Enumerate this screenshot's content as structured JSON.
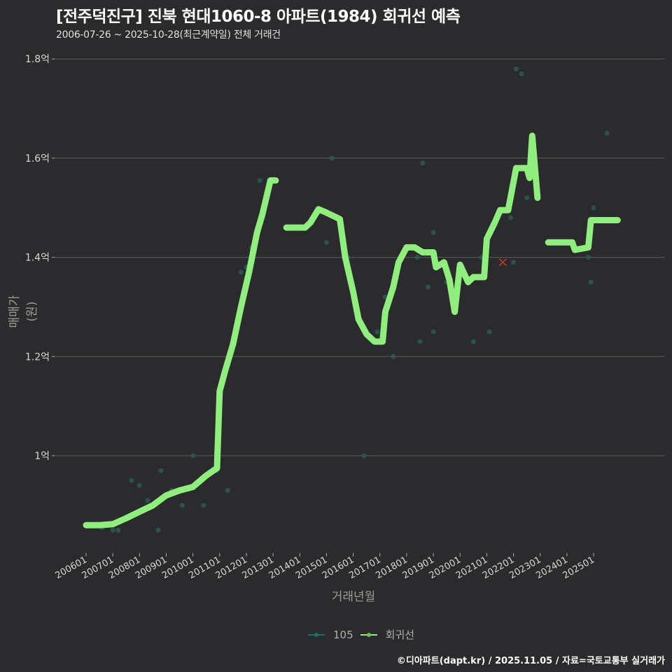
{
  "header": {
    "title": "[전주덕진구] 진북 현대1060-8 아파트(1984) 회귀선 예측",
    "subtitle": "2006-07-26 ~ 2025-10-28(최근계약일) 전체 거래건"
  },
  "axes": {
    "ylabel": "매매가(원)",
    "xlabel": "거래년월",
    "yticks": [
      "1억",
      "1.2억",
      "1.4억",
      "1.6억",
      "1.8억"
    ],
    "xticks": [
      "200601",
      "200701",
      "200801",
      "200901",
      "201001",
      "201101",
      "201201",
      "201301",
      "201401",
      "201501",
      "201601",
      "201701",
      "201801",
      "201901",
      "202001",
      "202101",
      "202201",
      "202301",
      "202401",
      "202501"
    ]
  },
  "legend": {
    "items": [
      {
        "label": "105",
        "color": "#1f6f66"
      },
      {
        "label": "회귀선",
        "color": "#90ee7e"
      }
    ]
  },
  "footer": {
    "credit": "©디아파트(dapt.kr) / 2025.11.05 / 자료=국토교통부 실거래가"
  },
  "colors": {
    "background": "#2b2a2c",
    "grid": "#5e5e5e",
    "regression": "#90ee7e",
    "points": "#2a5a52",
    "prediction_marker": "#c0392b"
  },
  "chart_data": {
    "type": "line",
    "title": "[전주덕진구] 진북 현대1060-8 아파트(1984) 회귀선 예측",
    "subtitle": "2006-07-26 ~ 2025-10-28(최근계약일) 전체 거래건",
    "xlabel": "거래년월",
    "ylabel": "매매가(원)",
    "ylim": [
      0.82,
      1.82
    ],
    "yunit": "억",
    "grid": true,
    "legend_position": "bottom",
    "series": [
      {
        "name": "회귀선",
        "type": "line",
        "segments": [
          [
            [
              2006.0,
              0.86
            ],
            [
              2006.5,
              0.86
            ],
            [
              2007.0,
              0.862
            ],
            [
              2007.5,
              0.874
            ],
            [
              2008.0,
              0.887
            ],
            [
              2008.5,
              0.9
            ],
            [
              2009.0,
              0.92
            ],
            [
              2009.5,
              0.93
            ],
            [
              2010.0,
              0.937
            ],
            [
              2010.5,
              0.96
            ],
            [
              2010.9,
              0.975
            ],
            [
              2011.0,
              1.13
            ],
            [
              2011.2,
              1.17
            ],
            [
              2011.5,
              1.225
            ],
            [
              2011.8,
              1.3
            ],
            [
              2012.1,
              1.37
            ],
            [
              2012.4,
              1.45
            ],
            [
              2012.6,
              1.487
            ],
            [
              2012.9,
              1.555
            ],
            [
              2013.1,
              1.555
            ]
          ],
          [
            [
              2013.5,
              1.46
            ],
            [
              2014.2,
              1.46
            ],
            [
              2014.4,
              1.47
            ],
            [
              2014.7,
              1.497
            ],
            [
              2015.0,
              1.49
            ],
            [
              2015.5,
              1.477
            ],
            [
              2015.7,
              1.4
            ],
            [
              2016.0,
              1.33
            ],
            [
              2016.2,
              1.275
            ],
            [
              2016.5,
              1.245
            ],
            [
              2016.8,
              1.23
            ],
            [
              2017.1,
              1.23
            ],
            [
              2017.2,
              1.29
            ],
            [
              2017.5,
              1.34
            ],
            [
              2017.7,
              1.39
            ],
            [
              2018.0,
              1.42
            ],
            [
              2018.3,
              1.42
            ],
            [
              2018.6,
              1.41
            ],
            [
              2019.0,
              1.41
            ],
            [
              2019.1,
              1.38
            ],
            [
              2019.4,
              1.39
            ],
            [
              2019.6,
              1.355
            ],
            [
              2019.8,
              1.29
            ],
            [
              2020.0,
              1.385
            ],
            [
              2020.3,
              1.35
            ],
            [
              2020.5,
              1.36
            ],
            [
              2020.9,
              1.36
            ],
            [
              2021.0,
              1.437
            ],
            [
              2021.3,
              1.47
            ],
            [
              2021.5,
              1.495
            ],
            [
              2021.8,
              1.495
            ],
            [
              2022.1,
              1.58
            ],
            [
              2022.5,
              1.58
            ],
            [
              2022.6,
              1.56
            ],
            [
              2022.7,
              1.645
            ],
            [
              2022.9,
              1.52
            ]
          ],
          [
            [
              2023.3,
              1.43
            ],
            [
              2024.2,
              1.43
            ],
            [
              2024.3,
              1.415
            ],
            [
              2024.8,
              1.42
            ],
            [
              2024.9,
              1.475
            ],
            [
              2025.0,
              1.475
            ],
            [
              2025.9,
              1.475
            ]
          ]
        ]
      },
      {
        "name": "105",
        "type": "scatter",
        "points": [
          [
            2006.6,
            0.855
          ],
          [
            2007.0,
            0.85
          ],
          [
            2007.2,
            0.85
          ],
          [
            2007.7,
            0.95
          ],
          [
            2008.0,
            0.94
          ],
          [
            2008.3,
            0.91
          ],
          [
            2008.7,
            0.85
          ],
          [
            2008.8,
            0.97
          ],
          [
            2009.2,
            0.93
          ],
          [
            2009.6,
            0.9
          ],
          [
            2010.0,
            1.0
          ],
          [
            2010.4,
            0.9
          ],
          [
            2010.9,
            0.97
          ],
          [
            2011.3,
            0.93
          ],
          [
            2011.8,
            1.37
          ],
          [
            2012.0,
            1.38
          ],
          [
            2012.2,
            1.42
          ],
          [
            2012.5,
            1.555
          ],
          [
            2014.7,
            1.49
          ],
          [
            2015.0,
            1.43
          ],
          [
            2015.2,
            1.6
          ],
          [
            2015.6,
            1.45
          ],
          [
            2015.8,
            1.4
          ],
          [
            2016.4,
            1.0
          ],
          [
            2016.9,
            1.25
          ],
          [
            2017.2,
            1.32
          ],
          [
            2017.5,
            1.2
          ],
          [
            2018.1,
            1.42
          ],
          [
            2018.4,
            1.4
          ],
          [
            2018.6,
            1.59
          ],
          [
            2018.5,
            1.23
          ],
          [
            2018.8,
            1.34
          ],
          [
            2019.0,
            1.25
          ],
          [
            2019.0,
            1.45
          ],
          [
            2019.5,
            1.35
          ],
          [
            2020.5,
            1.23
          ],
          [
            2020.8,
            1.4
          ],
          [
            2021.1,
            1.25
          ],
          [
            2021.9,
            1.48
          ],
          [
            2022.0,
            1.39
          ],
          [
            2022.1,
            1.78
          ],
          [
            2022.3,
            1.77
          ],
          [
            2022.5,
            1.52
          ],
          [
            2024.8,
            1.4
          ],
          [
            2024.9,
            1.35
          ],
          [
            2025.0,
            1.5
          ],
          [
            2025.5,
            1.65
          ]
        ]
      }
    ],
    "annotations": [
      {
        "type": "prediction-marker",
        "x": 2021.6,
        "y": 1.39,
        "shape": "x",
        "color": "#c0392b"
      }
    ]
  }
}
